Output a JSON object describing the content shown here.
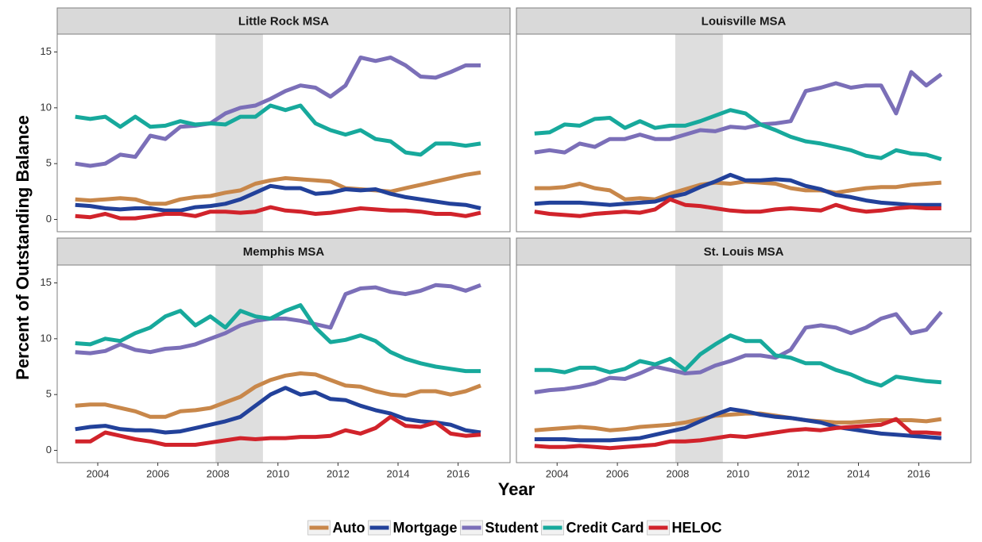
{
  "chart_data": {
    "type": "line",
    "xlabel": "Year",
    "ylabel": "Percent of Outstanding Balance",
    "xlim": [
      2002.65,
      2017.73
    ],
    "ylim": [
      -1.1,
      16.6
    ],
    "xticks": [
      2004,
      2006,
      2008,
      2010,
      2012,
      2014,
      2016
    ],
    "yticks": [
      0,
      5,
      10,
      15
    ],
    "shade": [
      2007.92,
      2009.5
    ],
    "legend_position": "bottom",
    "legend": [
      {
        "name": "Auto",
        "color": "#c8874a"
      },
      {
        "name": "Mortgage",
        "color": "#22419a"
      },
      {
        "name": "Student",
        "color": "#7b6fb8"
      },
      {
        "name": "Credit Card",
        "color": "#17a99c"
      },
      {
        "name": "HELOC",
        "color": "#d1232b"
      }
    ],
    "x": [
      2003.25,
      2003.75,
      2004.25,
      2004.75,
      2005.25,
      2005.75,
      2006.25,
      2006.75,
      2007.25,
      2007.75,
      2008.25,
      2008.75,
      2009.25,
      2009.75,
      2010.25,
      2010.75,
      2011.25,
      2011.75,
      2012.25,
      2012.75,
      2013.25,
      2013.75,
      2014.25,
      2014.75,
      2015.25,
      2015.75,
      2016.25,
      2016.75
    ],
    "panels": [
      {
        "title": "Little Rock MSA",
        "series": [
          {
            "values": [
              1.8,
              1.7,
              1.8,
              1.9,
              1.8,
              1.4,
              1.4,
              1.8,
              2.0,
              2.1,
              2.4,
              2.6,
              3.2,
              3.5,
              3.7,
              3.6,
              3.5,
              3.4,
              2.8,
              2.7,
              2.6,
              2.5,
              2.8,
              3.1,
              3.4,
              3.7,
              4.0,
              4.2
            ]
          },
          {
            "values": [
              1.3,
              1.2,
              1.0,
              0.9,
              1.0,
              1.0,
              0.8,
              0.8,
              1.1,
              1.2,
              1.4,
              1.8,
              2.4,
              3.0,
              2.8,
              2.8,
              2.3,
              2.4,
              2.7,
              2.6,
              2.7,
              2.3,
              2.0,
              1.8,
              1.6,
              1.4,
              1.3,
              1.0
            ]
          },
          {
            "values": [
              5.0,
              4.8,
              5.0,
              5.8,
              5.6,
              7.5,
              7.2,
              8.3,
              8.4,
              8.6,
              9.5,
              10.0,
              10.2,
              10.8,
              11.5,
              12.0,
              11.8,
              11.0,
              12.0,
              14.5,
              14.2,
              14.5,
              13.8,
              12.8,
              12.7,
              13.2,
              13.8,
              13.8
            ]
          },
          {
            "values": [
              9.2,
              9.0,
              9.2,
              8.3,
              9.2,
              8.3,
              8.4,
              8.8,
              8.5,
              8.6,
              8.5,
              9.2,
              9.2,
              10.2,
              9.8,
              10.2,
              8.6,
              8.0,
              7.6,
              8.0,
              7.2,
              7.0,
              6.0,
              5.8,
              6.8,
              6.8,
              6.6,
              6.8
            ]
          },
          {
            "values": [
              0.3,
              0.2,
              0.5,
              0.1,
              0.1,
              0.3,
              0.5,
              0.5,
              0.3,
              0.7,
              0.7,
              0.6,
              0.7,
              1.1,
              0.8,
              0.7,
              0.5,
              0.6,
              0.8,
              1.0,
              0.9,
              0.8,
              0.8,
              0.7,
              0.5,
              0.5,
              0.3,
              0.6
            ]
          }
        ]
      },
      {
        "title": "Louisville MSA",
        "series": [
          {
            "values": [
              2.8,
              2.8,
              2.9,
              3.2,
              2.8,
              2.6,
              1.8,
              1.9,
              1.8,
              2.3,
              2.7,
              3.1,
              3.3,
              3.2,
              3.4,
              3.3,
              3.2,
              2.8,
              2.6,
              2.6,
              2.4,
              2.6,
              2.8,
              2.9,
              2.9,
              3.1,
              3.2,
              3.3
            ]
          },
          {
            "values": [
              1.4,
              1.5,
              1.5,
              1.5,
              1.4,
              1.3,
              1.4,
              1.5,
              1.6,
              2.0,
              2.3,
              2.9,
              3.4,
              4.0,
              3.5,
              3.5,
              3.6,
              3.5,
              3.0,
              2.7,
              2.2,
              2.0,
              1.7,
              1.5,
              1.4,
              1.3,
              1.3,
              1.3
            ]
          },
          {
            "values": [
              6.0,
              6.2,
              6.0,
              6.8,
              6.5,
              7.2,
              7.2,
              7.6,
              7.2,
              7.2,
              7.6,
              8.0,
              7.9,
              8.3,
              8.2,
              8.5,
              8.6,
              8.8,
              11.5,
              11.8,
              12.2,
              11.8,
              12.0,
              12.0,
              9.5,
              13.2,
              12.0,
              13.0
            ]
          },
          {
            "values": [
              7.7,
              7.8,
              8.5,
              8.4,
              9.0,
              9.1,
              8.2,
              8.8,
              8.2,
              8.4,
              8.4,
              8.8,
              9.3,
              9.8,
              9.5,
              8.5,
              8.0,
              7.4,
              7.0,
              6.8,
              6.5,
              6.2,
              5.7,
              5.5,
              6.2,
              5.9,
              5.8,
              5.4
            ]
          },
          {
            "values": [
              0.7,
              0.5,
              0.4,
              0.3,
              0.5,
              0.6,
              0.7,
              0.6,
              0.9,
              1.8,
              1.3,
              1.2,
              1.0,
              0.8,
              0.7,
              0.7,
              0.9,
              1.0,
              0.9,
              0.8,
              1.3,
              0.9,
              0.7,
              0.8,
              1.0,
              1.1,
              1.0,
              1.0
            ]
          }
        ]
      },
      {
        "title": "Memphis MSA",
        "series": [
          {
            "values": [
              4.0,
              4.1,
              4.1,
              3.8,
              3.5,
              3.0,
              3.0,
              3.5,
              3.6,
              3.8,
              4.3,
              4.8,
              5.7,
              6.3,
              6.7,
              6.9,
              6.8,
              6.3,
              5.8,
              5.7,
              5.3,
              5.0,
              4.9,
              5.3,
              5.3,
              5.0,
              5.3,
              5.8
            ]
          },
          {
            "values": [
              1.9,
              2.1,
              2.2,
              1.9,
              1.8,
              1.8,
              1.6,
              1.7,
              2.0,
              2.3,
              2.6,
              3.0,
              4.0,
              5.0,
              5.6,
              5.0,
              5.2,
              4.6,
              4.5,
              4.0,
              3.6,
              3.3,
              2.8,
              2.6,
              2.5,
              2.3,
              1.8,
              1.6
            ]
          },
          {
            "values": [
              8.8,
              8.7,
              8.9,
              9.5,
              9.0,
              8.8,
              9.1,
              9.2,
              9.5,
              10.0,
              10.5,
              11.2,
              11.6,
              11.8,
              11.8,
              11.6,
              11.3,
              11.0,
              14.0,
              14.5,
              14.6,
              14.2,
              14.0,
              14.3,
              14.8,
              14.7,
              14.3,
              14.8
            ]
          },
          {
            "values": [
              9.6,
              9.5,
              10.0,
              9.8,
              10.5,
              11.0,
              12.0,
              12.5,
              11.2,
              12.0,
              11.0,
              12.5,
              12.0,
              11.8,
              12.5,
              13.0,
              11.0,
              9.7,
              9.9,
              10.3,
              9.8,
              8.8,
              8.2,
              7.8,
              7.5,
              7.3,
              7.1,
              7.1
            ]
          },
          {
            "values": [
              0.8,
              0.8,
              1.6,
              1.3,
              1.0,
              0.8,
              0.5,
              0.5,
              0.5,
              0.7,
              0.9,
              1.1,
              1.0,
              1.1,
              1.1,
              1.2,
              1.2,
              1.3,
              1.8,
              1.5,
              2.0,
              3.0,
              2.2,
              2.1,
              2.5,
              1.5,
              1.3,
              1.4
            ]
          }
        ]
      },
      {
        "title": "St. Louis MSA",
        "series": [
          {
            "values": [
              1.8,
              1.9,
              2.0,
              2.1,
              2.0,
              1.8,
              1.9,
              2.1,
              2.2,
              2.3,
              2.5,
              2.8,
              3.1,
              3.2,
              3.3,
              3.3,
              3.1,
              2.9,
              2.7,
              2.6,
              2.5,
              2.5,
              2.6,
              2.7,
              2.7,
              2.7,
              2.6,
              2.8
            ]
          },
          {
            "values": [
              1.0,
              1.0,
              1.0,
              0.9,
              0.9,
              0.9,
              1.0,
              1.1,
              1.4,
              1.7,
              2.0,
              2.6,
              3.2,
              3.7,
              3.5,
              3.2,
              3.0,
              2.9,
              2.7,
              2.5,
              2.1,
              1.9,
              1.7,
              1.5,
              1.4,
              1.3,
              1.2,
              1.1
            ]
          },
          {
            "values": [
              5.2,
              5.4,
              5.5,
              5.7,
              6.0,
              6.5,
              6.4,
              6.9,
              7.5,
              7.2,
              6.9,
              7.0,
              7.6,
              8.0,
              8.5,
              8.5,
              8.3,
              9.0,
              11.0,
              11.2,
              11.0,
              10.5,
              11.0,
              11.8,
              12.2,
              10.5,
              10.8,
              12.4
            ]
          },
          {
            "values": [
              7.2,
              7.2,
              7.0,
              7.4,
              7.4,
              7.0,
              7.3,
              8.0,
              7.7,
              8.2,
              7.2,
              8.6,
              9.5,
              10.3,
              9.8,
              9.8,
              8.5,
              8.3,
              7.8,
              7.8,
              7.2,
              6.8,
              6.2,
              5.8,
              6.6,
              6.4,
              6.2,
              6.1
            ]
          },
          {
            "values": [
              0.4,
              0.3,
              0.3,
              0.4,
              0.3,
              0.2,
              0.3,
              0.4,
              0.5,
              0.8,
              0.8,
              0.9,
              1.1,
              1.3,
              1.2,
              1.4,
              1.6,
              1.8,
              1.9,
              1.8,
              2.0,
              2.1,
              2.2,
              2.3,
              2.8,
              1.6,
              1.6,
              1.5
            ]
          }
        ]
      }
    ]
  }
}
